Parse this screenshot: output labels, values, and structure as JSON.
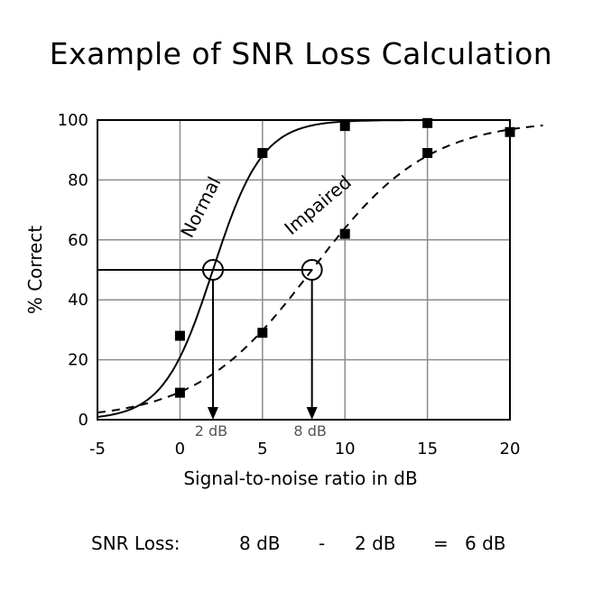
{
  "chart_data": {
    "type": "line",
    "title": "Example of SNR Loss Calculation",
    "xlabel": "Signal-to-noise ratio in dB",
    "ylabel": "% Correct",
    "xlim": [
      -5,
      20
    ],
    "ylim": [
      0,
      100
    ],
    "xticks": [
      "-5",
      "0",
      "5",
      "10",
      "15",
      "20"
    ],
    "yticks": [
      "0",
      "20",
      "40",
      "60",
      "80",
      "100"
    ],
    "grid": true,
    "series": [
      {
        "name": "Normal",
        "style": "solid",
        "points": [
          [
            0,
            28
          ],
          [
            5,
            89
          ],
          [
            10,
            98
          ],
          [
            15,
            99
          ]
        ]
      },
      {
        "name": "Impaired",
        "style": "dashed",
        "points": [
          [
            0,
            9
          ],
          [
            5,
            29
          ],
          [
            10,
            62
          ],
          [
            15,
            89
          ],
          [
            20,
            96
          ]
        ]
      }
    ],
    "threshold_level": 50,
    "thresholds": [
      {
        "series": "Normal",
        "x": 2,
        "label": "2 dB"
      },
      {
        "series": "Impaired",
        "x": 8,
        "label": "8 dB"
      }
    ]
  },
  "footer": {
    "label": "SNR Loss:",
    "impaired_value": "8 dB",
    "minus_sign": "-",
    "normal_value": "2 dB",
    "equals_sign": "=",
    "result_value": "6 dB"
  },
  "colors": {
    "ink": "#000000",
    "grid": "#8c8c8c",
    "annotation_text": "#555555"
  }
}
